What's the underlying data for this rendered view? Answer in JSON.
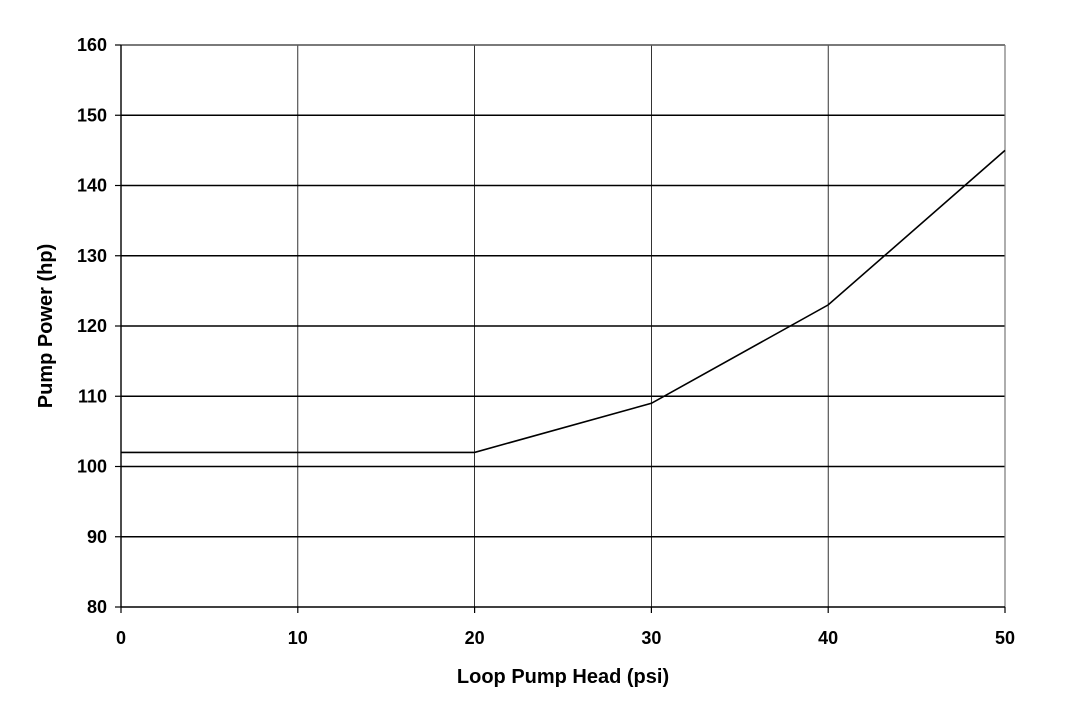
{
  "chart_data": {
    "type": "line",
    "title": "",
    "xlabel": "Loop Pump Head (psi)",
    "ylabel": "Pump Power (hp)",
    "xlim": [
      0,
      50
    ],
    "ylim": [
      80,
      160
    ],
    "x_ticks": [
      0,
      10,
      20,
      30,
      40,
      50
    ],
    "y_ticks": [
      80,
      90,
      100,
      110,
      120,
      130,
      140,
      150,
      160
    ],
    "grid": true,
    "legend": "none",
    "series": [
      {
        "color": "#000000",
        "x": [
          0,
          20,
          30,
          40,
          50
        ],
        "y": [
          102,
          102,
          109,
          123,
          145
        ]
      }
    ]
  }
}
